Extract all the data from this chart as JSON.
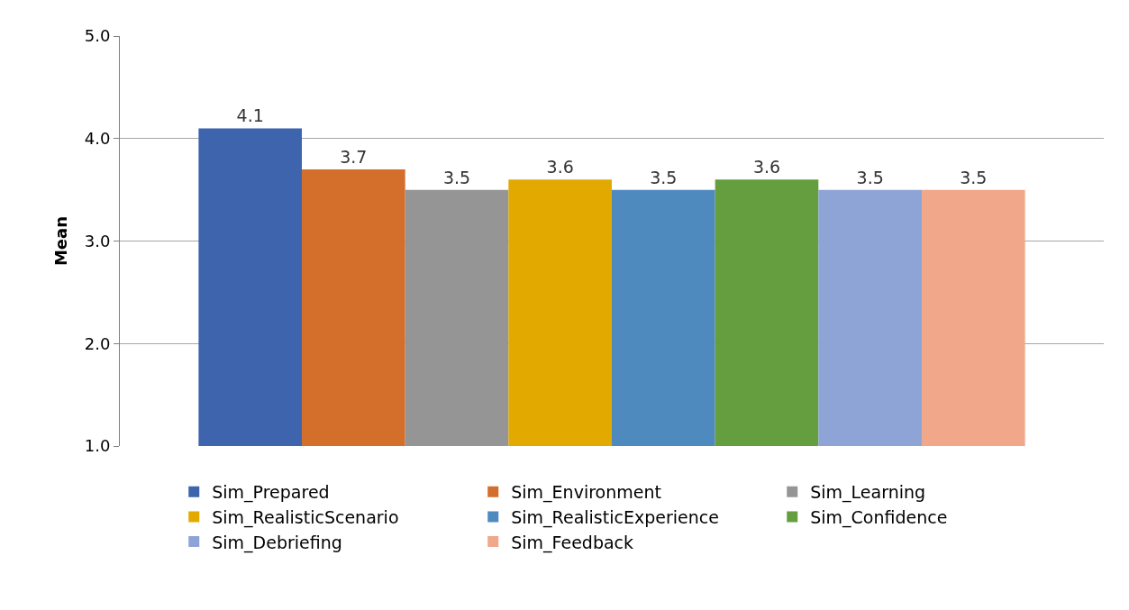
{
  "chart_data": {
    "type": "bar",
    "ylabel": "Mean",
    "categories": [
      null
    ],
    "series": [
      {
        "name": "Sim_Prepared",
        "color": "#3e64ad",
        "values": [
          4.1
        ]
      },
      {
        "name": "Sim_Environment",
        "color": "#d46e2b",
        "values": [
          3.7
        ]
      },
      {
        "name": "Sim_Learning",
        "color": "#959595",
        "values": [
          3.5
        ]
      },
      {
        "name": "Sim_RealisticScenario",
        "color": "#e2aa00",
        "values": [
          3.6
        ]
      },
      {
        "name": "Sim_RealisticExperience",
        "color": "#4f8abe",
        "values": [
          3.5
        ]
      },
      {
        "name": "Sim_Confidence",
        "color": "#659e3e",
        "values": [
          3.6
        ]
      },
      {
        "name": "Sim_Debriefing",
        "color": "#8fa4d6",
        "values": [
          3.5
        ]
      },
      {
        "name": "Sim_Feedback",
        "color": "#f0a78a",
        "values": [
          3.5
        ]
      }
    ],
    "ylim": [
      1,
      5
    ],
    "yticks": [
      {
        "value": 1,
        "label": "1.0"
      },
      {
        "value": 2,
        "label": "2.0"
      },
      {
        "value": 3,
        "label": "3.0"
      },
      {
        "value": 4,
        "label": "4.0"
      },
      {
        "value": 5,
        "label": "5.0"
      }
    ],
    "grid": "y",
    "legend": "bottom",
    "data_labels": true
  }
}
